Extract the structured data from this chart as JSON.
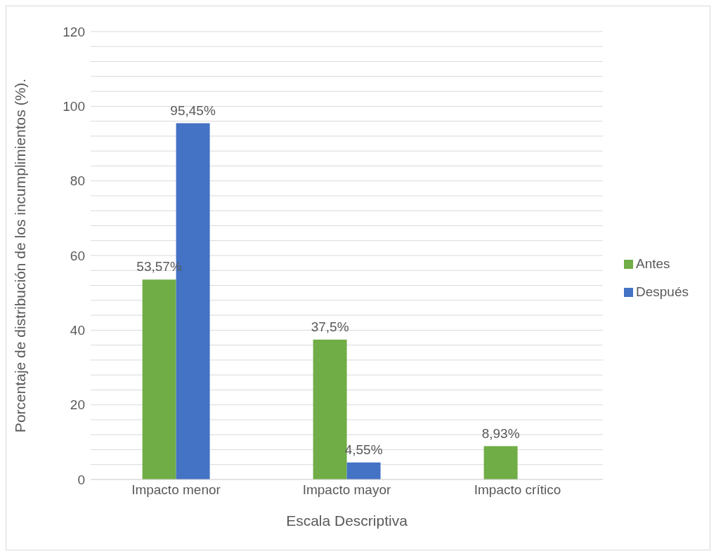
{
  "chart_data": {
    "type": "bar",
    "xlabel": "Escala Descriptiva",
    "ylabel": "Porcentaje de distribución de los incumplimientos (%).",
    "categories": [
      "Impacto menor",
      "Impacto mayor",
      "Impacto crítico"
    ],
    "series": [
      {
        "name": "Antes",
        "color": "#70ad47",
        "values": [
          53.57,
          37.5,
          8.93
        ],
        "value_labels": [
          "53,57%",
          "37,5%",
          "8,93%"
        ]
      },
      {
        "name": "Después",
        "color": "#4472c4",
        "values": [
          95.45,
          4.55,
          null
        ],
        "value_labels": [
          "95,45%",
          "4,55%",
          null
        ]
      }
    ],
    "ylim": [
      0,
      120
    ],
    "yticks": [
      0,
      {
        "value": 4,
        "label": null
      },
      {
        "value": 8,
        "label": null
      },
      {
        "value": 12,
        "label": null
      },
      {
        "value": 16,
        "label": null
      },
      20,
      {
        "value": 24,
        "label": null
      },
      {
        "value": 28,
        "label": null
      },
      {
        "value": 32,
        "label": null
      },
      {
        "value": 36,
        "label": null
      },
      40,
      {
        "value": 44,
        "label": null
      },
      {
        "value": 48,
        "label": null
      },
      {
        "value": 52,
        "label": null
      },
      {
        "value": 56,
        "label": null
      },
      60,
      {
        "value": 64,
        "label": null
      },
      {
        "value": 68,
        "label": null
      },
      {
        "value": 72,
        "label": null
      },
      {
        "value": 76,
        "label": null
      },
      80,
      {
        "value": 84,
        "label": null
      },
      {
        "value": 88,
        "label": null
      },
      {
        "value": 92,
        "label": null
      },
      {
        "value": 96,
        "label": null
      },
      100,
      {
        "value": 104,
        "label": null
      },
      {
        "value": 108,
        "label": null
      },
      {
        "value": 112,
        "label": null
      },
      {
        "value": 116,
        "label": null
      },
      120
    ],
    "grid": "y",
    "legend": "right"
  }
}
